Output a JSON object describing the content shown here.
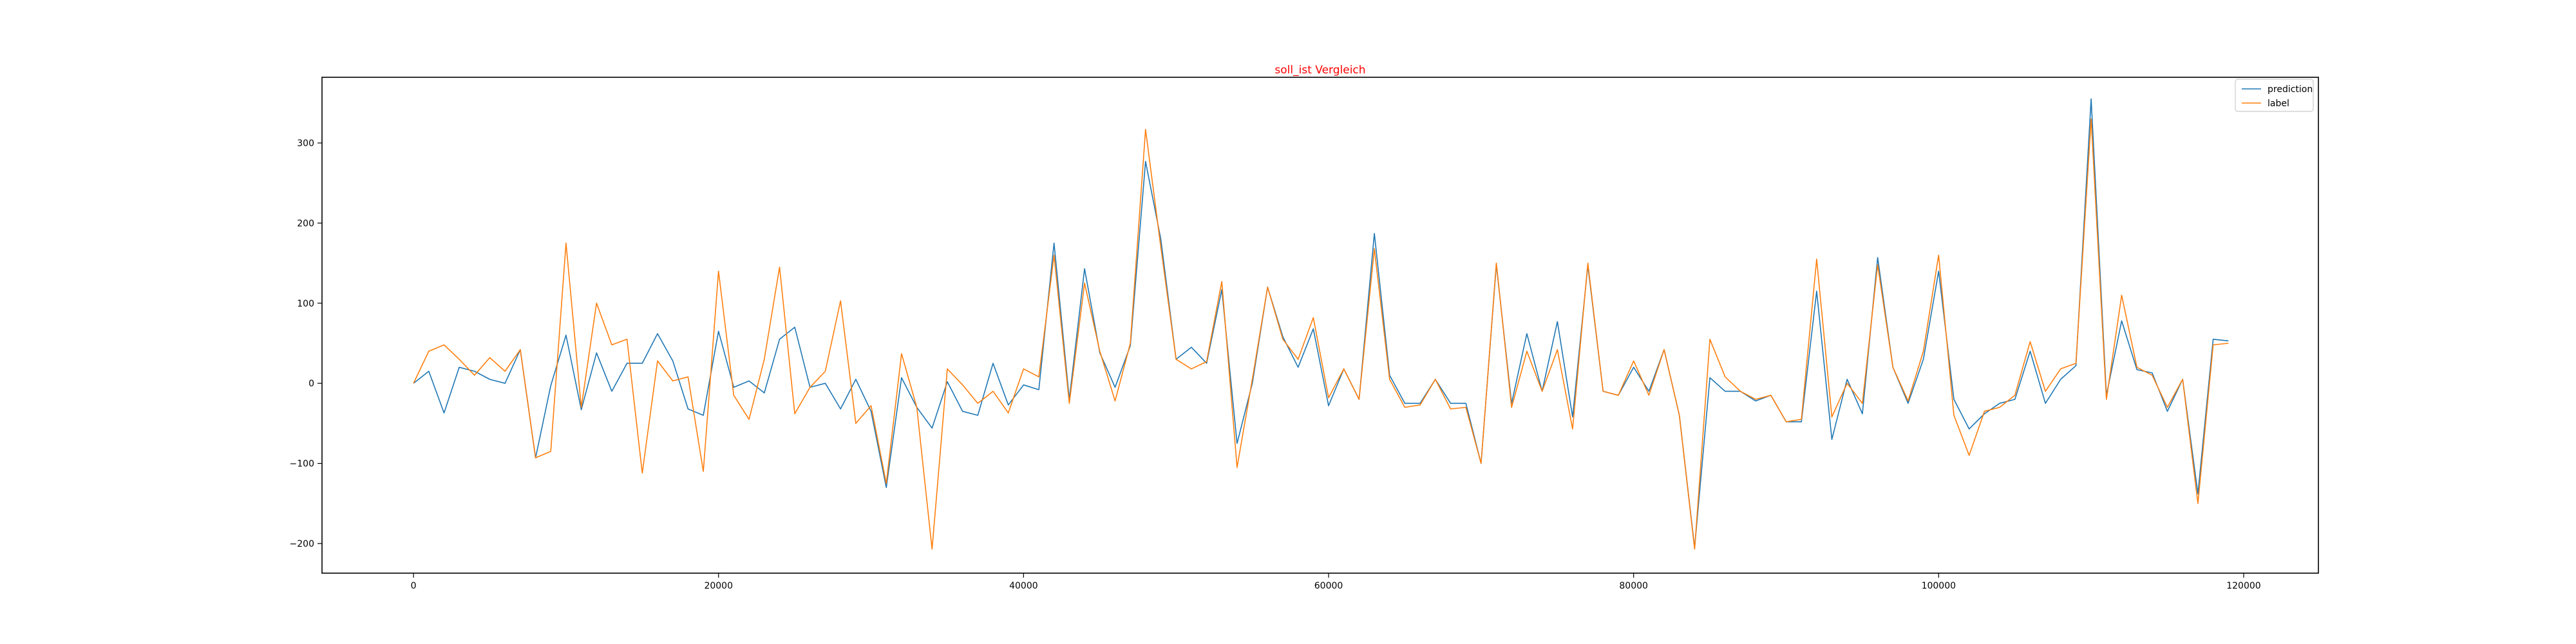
{
  "chart_data": {
    "type": "line",
    "title": "soll_ist Vergleich",
    "title_color": "#ff0000",
    "xlabel": "",
    "ylabel": "",
    "xlim": [
      -6000,
      124900
    ],
    "ylim": [
      -237,
      382
    ],
    "xticks": [
      0,
      20000,
      40000,
      60000,
      80000,
      100000,
      120000
    ],
    "xtick_labels": [
      "0",
      "20000",
      "40000",
      "60000",
      "80000",
      "100000",
      "120000"
    ],
    "yticks": [
      -200,
      -100,
      0,
      100,
      200,
      300
    ],
    "ytick_labels": [
      "−200",
      "−100",
      "0",
      "100",
      "200",
      "300"
    ],
    "grid": false,
    "legend_position": "upper right",
    "x": [
      0,
      1000,
      2000,
      3000,
      4000,
      5000,
      6000,
      7000,
      8000,
      9000,
      10000,
      11000,
      12000,
      13000,
      14000,
      15000,
      16000,
      17000,
      18000,
      19000,
      20000,
      21000,
      22000,
      23000,
      24000,
      25000,
      26000,
      27000,
      28000,
      29000,
      30000,
      31000,
      32000,
      33000,
      34000,
      35000,
      36000,
      37000,
      38000,
      39000,
      40000,
      41000,
      42000,
      43000,
      44000,
      45000,
      46000,
      47000,
      48000,
      49000,
      50000,
      51000,
      52000,
      53000,
      54000,
      55000,
      56000,
      57000,
      58000,
      59000,
      60000,
      61000,
      62000,
      63000,
      64000,
      65000,
      66000,
      67000,
      68000,
      69000,
      70000,
      71000,
      72000,
      73000,
      74000,
      75000,
      76000,
      77000,
      78000,
      79000,
      80000,
      81000,
      82000,
      83000,
      84000,
      85000,
      86000,
      87000,
      88000,
      89000,
      90000,
      91000,
      92000,
      93000,
      94000,
      95000,
      96000,
      97000,
      98000,
      99000,
      100000,
      101000,
      102000,
      103000,
      104000,
      105000,
      106000,
      107000,
      108000,
      109000,
      110000,
      111000,
      112000,
      113000,
      114000,
      115000,
      116000,
      117000,
      118000,
      119000
    ],
    "series": [
      {
        "name": "prediction",
        "color": "#1f77b4",
        "values": [
          0,
          15,
          -37,
          20,
          15,
          5,
          0,
          42,
          -93,
          -3,
          60,
          -33,
          38,
          -10,
          25,
          25,
          62,
          28,
          -32,
          -40,
          65,
          -5,
          3,
          -12,
          55,
          70,
          -5,
          0,
          -32,
          5,
          -35,
          -130,
          7,
          -30,
          -56,
          2,
          -35,
          -40,
          25,
          -27,
          -2,
          -8,
          175,
          -20,
          143,
          38,
          -5,
          47,
          277,
          180,
          30,
          45,
          25,
          117,
          -75,
          0,
          120,
          58,
          20,
          68,
          -28,
          18,
          -20,
          187,
          10,
          -25,
          -25,
          5,
          -25,
          -25,
          -100,
          148,
          -25,
          62,
          -10,
          77,
          -42,
          147,
          -10,
          -15,
          20,
          -10,
          42,
          -40,
          -205,
          7,
          -10,
          -10,
          -22,
          -15,
          -48,
          -48,
          115,
          -70,
          5,
          -38,
          157,
          20,
          -25,
          30,
          140,
          -20,
          -57,
          -38,
          -25,
          -20,
          40,
          -25,
          5,
          22,
          355,
          -15,
          78,
          17,
          13,
          -35,
          5,
          -138,
          55,
          53
        ]
      },
      {
        "name": "label",
        "color": "#ff7f0e",
        "values": [
          0,
          40,
          48,
          30,
          10,
          32,
          15,
          42,
          -93,
          -85,
          175,
          -30,
          100,
          48,
          55,
          -112,
          28,
          3,
          8,
          -110,
          140,
          -15,
          -45,
          30,
          145,
          -38,
          -5,
          15,
          103,
          -50,
          -28,
          -125,
          37,
          -30,
          -207,
          18,
          -2,
          -25,
          -10,
          -37,
          18,
          8,
          160,
          -25,
          125,
          40,
          -22,
          50,
          317,
          170,
          30,
          18,
          27,
          127,
          -105,
          5,
          120,
          55,
          30,
          82,
          -18,
          18,
          -20,
          168,
          5,
          -30,
          -27,
          5,
          -32,
          -30,
          -100,
          150,
          -30,
          40,
          -10,
          42,
          -57,
          150,
          -10,
          -15,
          28,
          -15,
          42,
          -40,
          -207,
          55,
          8,
          -10,
          -20,
          -15,
          -48,
          -45,
          155,
          -42,
          0,
          -25,
          148,
          20,
          -22,
          40,
          160,
          -40,
          -90,
          -35,
          -30,
          -15,
          52,
          -10,
          18,
          25,
          330,
          -20,
          110,
          20,
          10,
          -30,
          5,
          -150,
          48,
          50
        ]
      }
    ]
  }
}
